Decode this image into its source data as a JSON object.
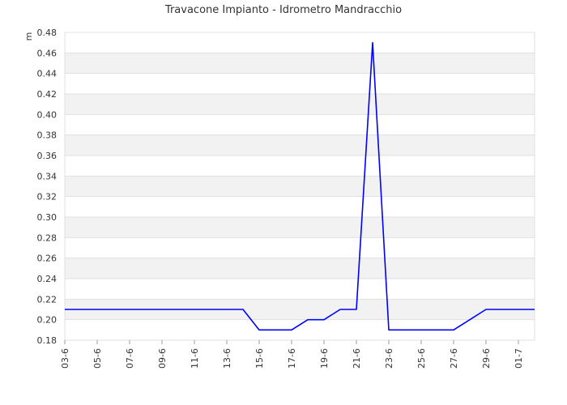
{
  "chart_data": {
    "type": "line",
    "title": "Travacone Impianto - Idrometro Mandracchio",
    "ylabel": "m",
    "xlabel": "",
    "ylim": [
      0.18,
      0.48
    ],
    "y_ticks": [
      "0.18",
      "0.20",
      "0.22",
      "0.24",
      "0.26",
      "0.28",
      "0.30",
      "0.32",
      "0.34",
      "0.36",
      "0.38",
      "0.40",
      "0.42",
      "0.44",
      "0.46",
      "0.48"
    ],
    "x_ticks": [
      "03-6",
      "05-6",
      "07-6",
      "09-6",
      "11-6",
      "13-6",
      "15-6",
      "17-6",
      "19-6",
      "21-6",
      "23-6",
      "25-6",
      "27-6",
      "29-6",
      "01-7"
    ],
    "grid": true,
    "series": [
      {
        "color": "#0000ff",
        "x": [
          "03-6",
          "04-6",
          "05-6",
          "06-6",
          "07-6",
          "08-6",
          "09-6",
          "10-6",
          "11-6",
          "12-6",
          "13-6",
          "14-6",
          "15-6",
          "16-6",
          "17-6",
          "18-6",
          "19-6",
          "20-6",
          "21-6",
          "22-6",
          "23-6",
          "24-6",
          "25-6",
          "26-6",
          "27-6",
          "28-6",
          "29-6",
          "30-6",
          "01-7",
          "02-7"
        ],
        "values": [
          0.21,
          0.21,
          0.21,
          0.21,
          0.21,
          0.21,
          0.21,
          0.21,
          0.21,
          0.21,
          0.21,
          0.21,
          0.19,
          0.19,
          0.19,
          0.2,
          0.2,
          0.21,
          0.21,
          0.47,
          0.19,
          0.19,
          0.19,
          0.19,
          0.19,
          0.2,
          0.21,
          0.21,
          0.21,
          0.21
        ]
      }
    ]
  }
}
